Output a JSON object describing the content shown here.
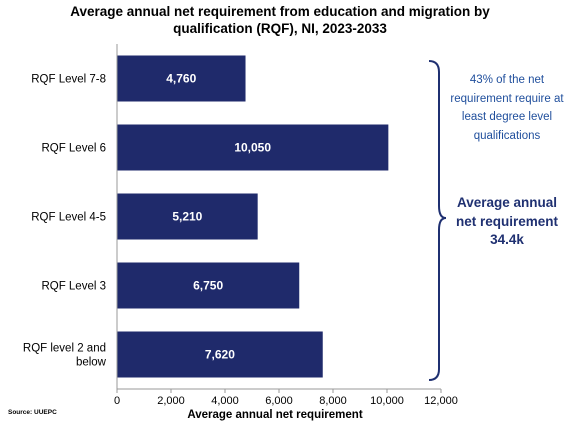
{
  "chart_data": {
    "type": "bar",
    "orientation": "horizontal",
    "title": "Average annual net requirement from education and migration by qualification (RQF), NI, 2023-2033",
    "categories": [
      "RQF Level 7-8",
      "RQF Level 6",
      "RQF Level 4-5",
      "RQF Level 3",
      "RQF level 2 and below"
    ],
    "values": [
      4760,
      10050,
      5210,
      6750,
      7620
    ],
    "value_labels": [
      "4,760",
      "10,050",
      "5,210",
      "6,750",
      "7,620"
    ],
    "xlabel": "Average annual net requirement",
    "ylabel": "",
    "xlim": [
      0,
      12000
    ],
    "xticks": [
      0,
      2000,
      4000,
      6000,
      8000,
      10000,
      12000
    ],
    "xtick_labels": [
      "0",
      "2,000",
      "4,000",
      "6,000",
      "8,000",
      "10,000",
      "12,000"
    ],
    "grid": false,
    "bar_color": "#1f2a6b",
    "annotations": [
      "43% of the net requirement require at least degree level qualifications",
      "Average annual net requirement 34.4k"
    ]
  },
  "annotation_small": "43% of the net requirement require at least degree level qualifications",
  "annotation_big": "Average annual net requirement 34.4k",
  "source": "Source: UUEPC",
  "colors": {
    "bar": "#1f2a6b",
    "brace": "#1f3071",
    "annotation_small": "#1f4e9c",
    "annotation_big": "#1f3071"
  }
}
